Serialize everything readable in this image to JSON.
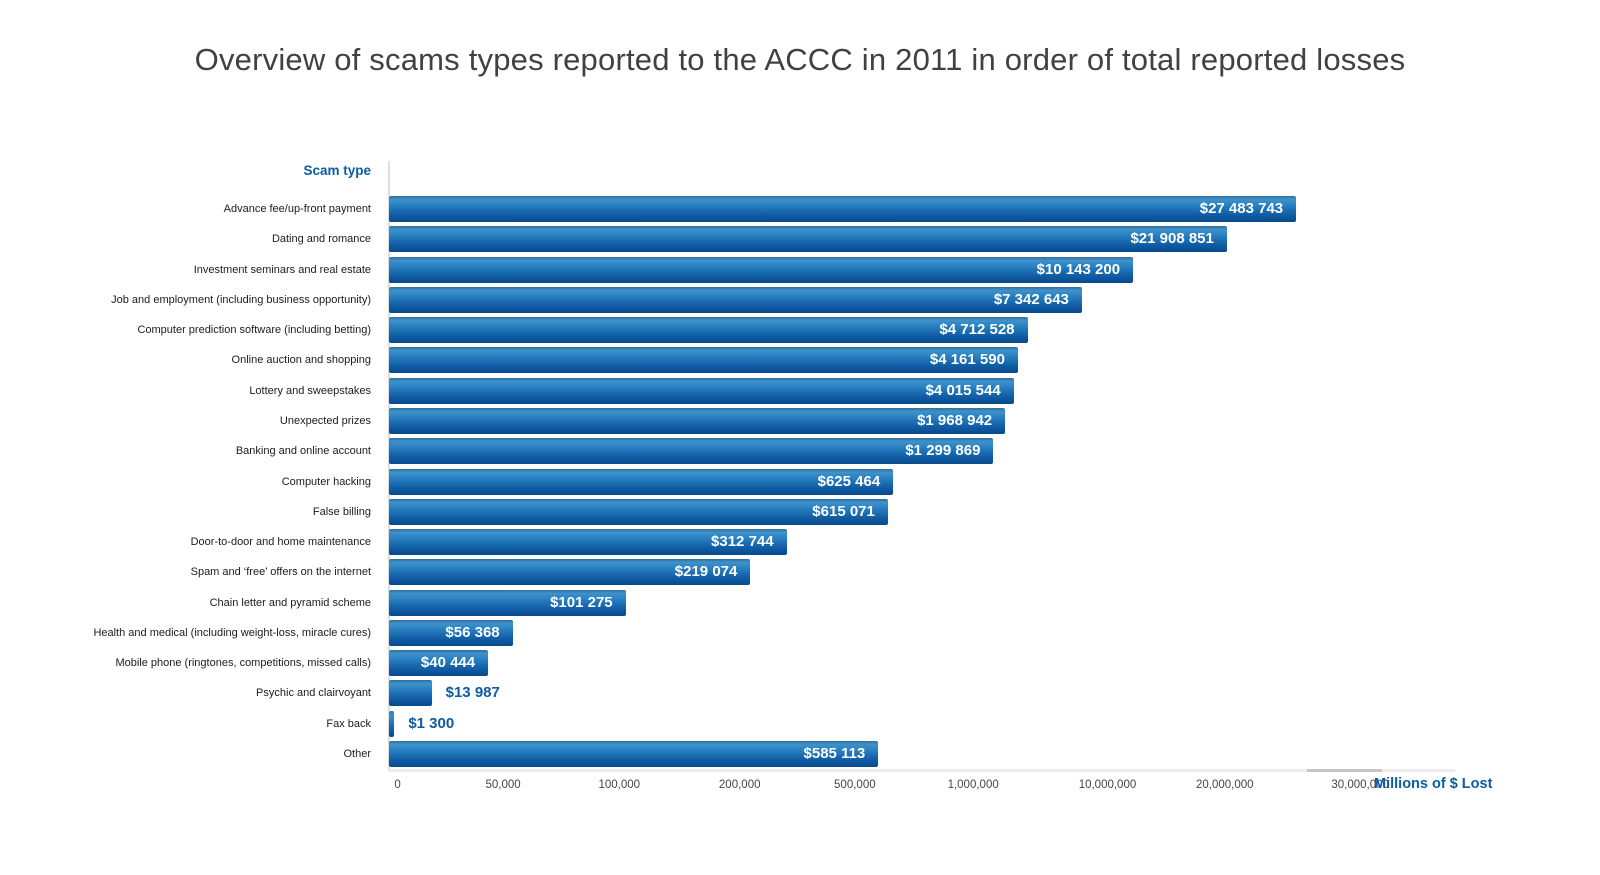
{
  "chart_data": {
    "type": "bar",
    "orientation": "horizontal",
    "title": "Overview of scams types reported to the ACCC in 2011 in order of total reported losses",
    "y_axis_header": "Scam type",
    "x_axis": {
      "title": "Millions of $ Lost",
      "scale": "non-linear compressed scale",
      "grid": false,
      "ticks": [
        {
          "label": "0",
          "value": 0,
          "pct": 0.8
        },
        {
          "label": "50,000",
          "value": 50000,
          "pct": 10.7
        },
        {
          "label": "100,000",
          "value": 100000,
          "pct": 21.6
        },
        {
          "label": "200,000",
          "value": 200000,
          "pct": 32.9
        },
        {
          "label": "500,000",
          "value": 500000,
          "pct": 43.7
        },
        {
          "label": "1,000,000",
          "value": 1000000,
          "pct": 54.8
        },
        {
          "label": "10,000,000",
          "value": 10000000,
          "pct": 67.4
        },
        {
          "label": "20,000,000",
          "value": 20000000,
          "pct": 78.4
        },
        {
          "label": "30,000,000",
          "value": 30000000,
          "pct": 91.1
        }
      ]
    },
    "items": [
      {
        "label": "Advance fee/up-front payment",
        "value": 27483743,
        "value_label": "$27 483 743",
        "bar_pct": 85.1,
        "value_label_position": "inside"
      },
      {
        "label": "Dating and romance",
        "value": 21908851,
        "value_label": "$21 908 851",
        "bar_pct": 78.6,
        "value_label_position": "inside"
      },
      {
        "label": "Investment seminars and real estate",
        "value": 10143200,
        "value_label": "$10 143 200",
        "bar_pct": 69.8,
        "value_label_position": "inside"
      },
      {
        "label": "Job and employment (including business opportunity)",
        "value": 7342643,
        "value_label": "$7 342 643",
        "bar_pct": 65.0,
        "value_label_position": "inside"
      },
      {
        "label": "Computer prediction software (including betting)",
        "value": 4712528,
        "value_label": "$4 712 528",
        "bar_pct": 59.9,
        "value_label_position": "inside"
      },
      {
        "label": "Online auction and shopping",
        "value": 4161590,
        "value_label": "$4 161 590",
        "bar_pct": 59.0,
        "value_label_position": "inside"
      },
      {
        "label": "Lottery and sweepstakes",
        "value": 4015544,
        "value_label": "$4 015 544",
        "bar_pct": 58.6,
        "value_label_position": "inside"
      },
      {
        "label": "Unexpected prizes",
        "value": 1968942,
        "value_label": "$1 968 942",
        "bar_pct": 57.8,
        "value_label_position": "inside"
      },
      {
        "label": "Banking and online account",
        "value": 1299869,
        "value_label": "$1 299 869",
        "bar_pct": 56.7,
        "value_label_position": "inside"
      },
      {
        "label": "Computer hacking",
        "value": 625464,
        "value_label": "$625 464",
        "bar_pct": 47.3,
        "value_label_position": "inside"
      },
      {
        "label": "False billing",
        "value": 615071,
        "value_label": "$615 071",
        "bar_pct": 46.8,
        "value_label_position": "inside"
      },
      {
        "label": "Door-to-door and home maintenance",
        "value": 312744,
        "value_label": "$312 744",
        "bar_pct": 37.3,
        "value_label_position": "inside"
      },
      {
        "label": "Spam and ‘free’ offers on the internet",
        "value": 219074,
        "value_label": "$219 074",
        "bar_pct": 33.9,
        "value_label_position": "inside"
      },
      {
        "label": "Chain letter and pyramid scheme",
        "value": 101275,
        "value_label": "$101 275",
        "bar_pct": 22.2,
        "value_label_position": "inside"
      },
      {
        "label": "Health and medical (including weight-loss, miracle cures)",
        "value": 56368,
        "value_label": "$56 368",
        "bar_pct": 11.6,
        "value_label_position": "inside"
      },
      {
        "label": "Mobile phone (ringtones, competitions, missed calls)",
        "value": 40444,
        "value_label": "$40 444",
        "bar_pct": 9.3,
        "value_label_position": "inside"
      },
      {
        "label": "Psychic and clairvoyant",
        "value": 13987,
        "value_label": "$13 987",
        "bar_pct": 4.0,
        "value_label_position": "outside"
      },
      {
        "label": "Fax back",
        "value": 1300,
        "value_label": "$1 300",
        "bar_pct": 0.5,
        "value_label_position": "outside"
      },
      {
        "label": "Other",
        "value": 585113,
        "value_label": "$585 113",
        "bar_pct": 45.9,
        "value_label_position": "inside"
      }
    ],
    "colors": {
      "bar_gradient_top": "#3e92cc",
      "bar_gradient_bottom": "#094a8c",
      "accent_blue": "#0c5ca5",
      "title_text": "#414141",
      "bar_value_text": "#ffffff",
      "axis_line": "#dedede"
    }
  }
}
